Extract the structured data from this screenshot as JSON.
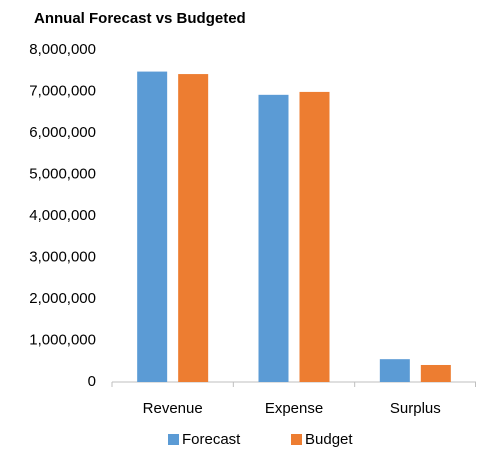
{
  "chart_data": {
    "type": "bar",
    "title": "Annual Forecast vs Budgeted",
    "categories": [
      "Revenue",
      "Expense",
      "Surplus"
    ],
    "series": [
      {
        "name": "Forecast",
        "color": "#5b9bd5",
        "values": [
          7480000,
          6920000,
          550000
        ]
      },
      {
        "name": "Budget",
        "color": "#ed7d31",
        "values": [
          7420000,
          6990000,
          410000
        ]
      }
    ],
    "ylim": [
      0,
      8000000
    ],
    "yticks": [
      0,
      {
        "value": 1000000,
        "label": "1,000,000"
      },
      {
        "value": 2000000,
        "label": "2,000,000"
      },
      {
        "value": 3000000,
        "label": "3,000,000"
      },
      {
        "value": 4000000,
        "label": "4,000,000"
      },
      {
        "value": 5000000,
        "label": "5,000,000"
      },
      {
        "value": 6000000,
        "label": "6,000,000"
      },
      {
        "value": 7000000,
        "label": "7,000,000"
      },
      {
        "value": 8000000,
        "label": "8,000,000"
      }
    ],
    "grid": false,
    "legend": "bottom"
  }
}
